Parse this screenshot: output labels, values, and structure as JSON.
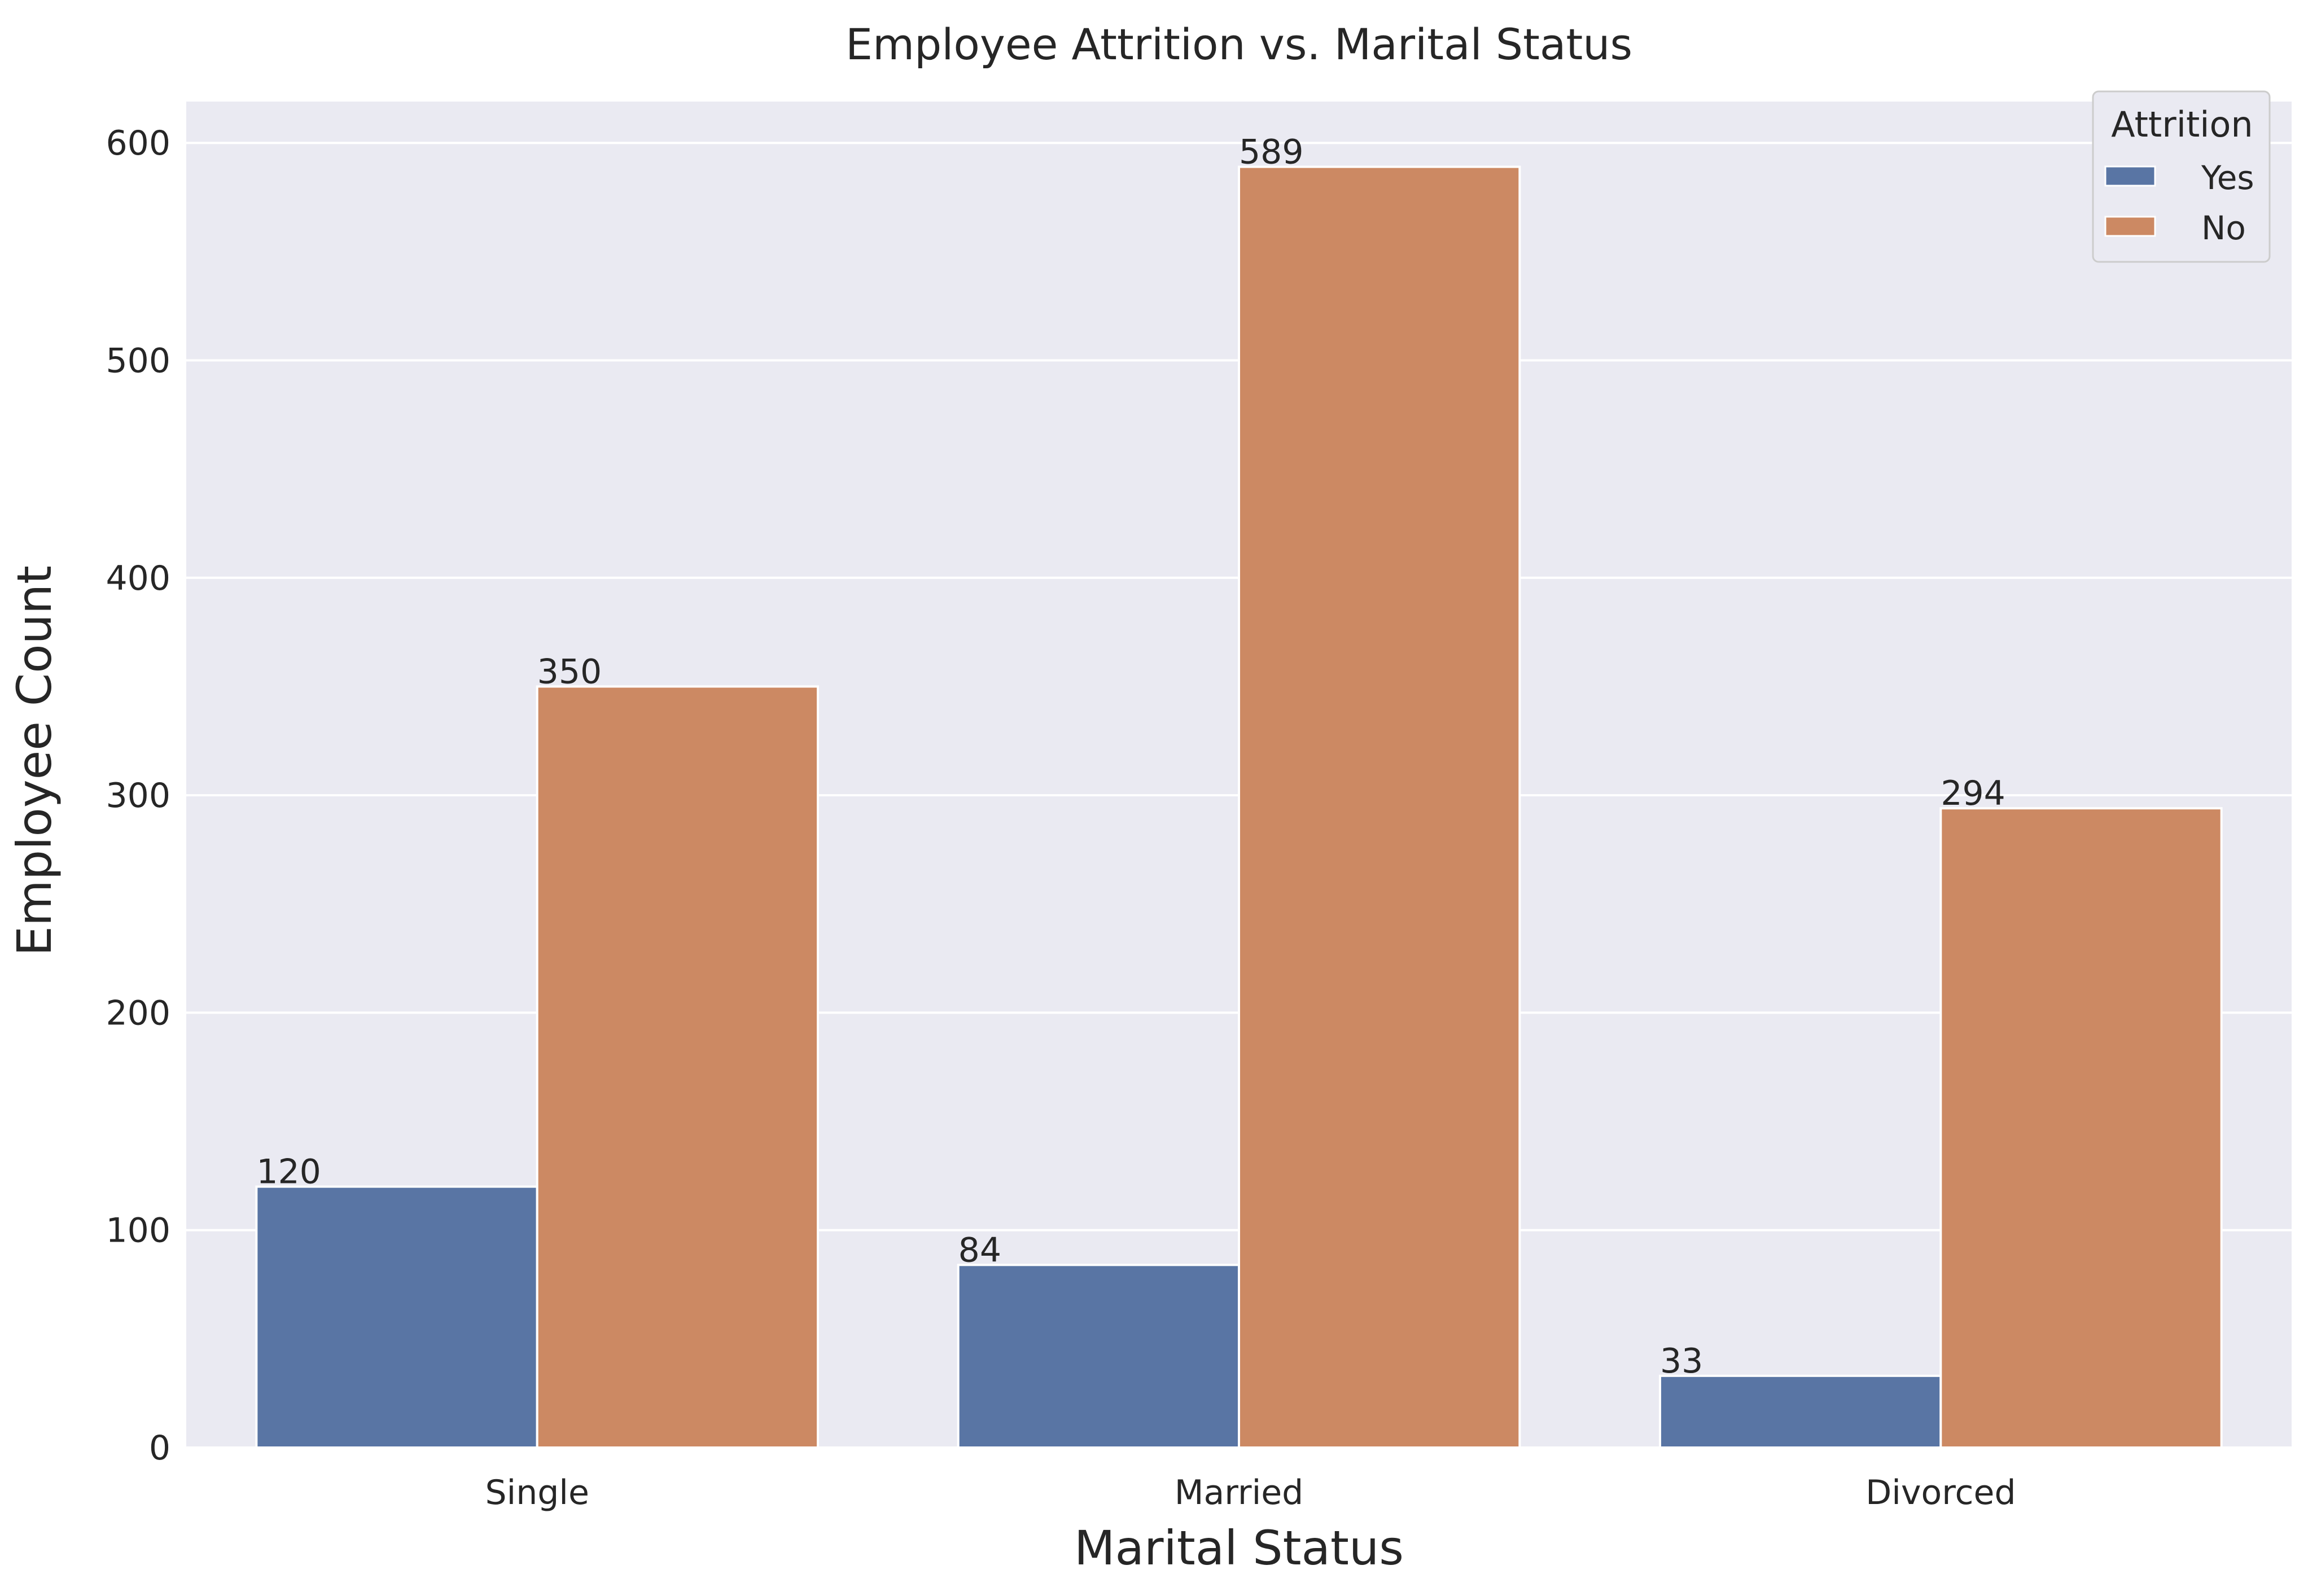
{
  "chart_data": {
    "type": "bar",
    "title": "Employee Attrition vs. Marital Status",
    "xlabel": "Marital Status",
    "ylabel": "Employee Count",
    "categories": [
      "Single",
      "Married",
      "Divorced"
    ],
    "series": [
      {
        "name": "Yes",
        "values": [
          120,
          84,
          33
        ],
        "color": "#5975a4"
      },
      {
        "name": "No",
        "values": [
          350,
          589,
          294
        ],
        "color": "#cc8963"
      }
    ],
    "ylim": [
      0,
      619
    ],
    "yticks": [
      0,
      100,
      200,
      300,
      400,
      500,
      600
    ],
    "grid": true,
    "legend": {
      "title": "Attrition",
      "placement": "top-right"
    },
    "colors": {
      "background": "#eaeaf2",
      "grid": "#ffffff",
      "text": "#262626"
    }
  }
}
